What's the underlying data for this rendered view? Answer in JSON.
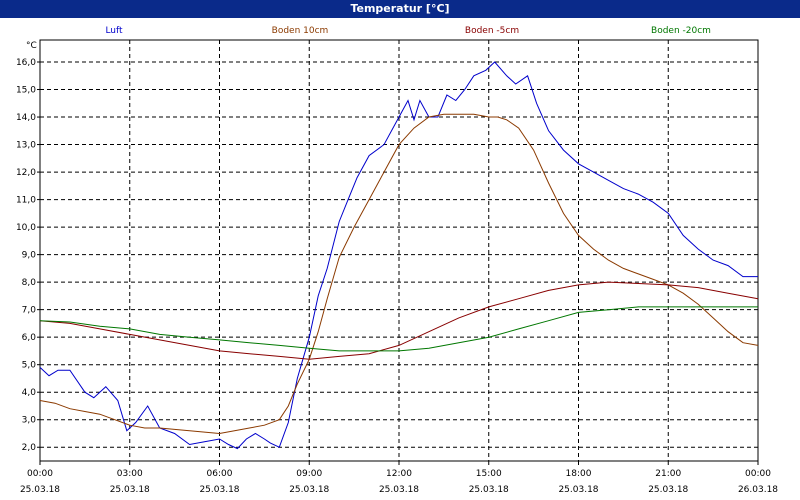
{
  "window": {
    "title": "Temperatur [°C]"
  },
  "chart_data": {
    "type": "line",
    "title": "Temperatur [°C]",
    "ylabel": "°C",
    "xlabel": "",
    "ylim": [
      1.5,
      16.8
    ],
    "xlim": [
      0,
      24
    ],
    "grid": true,
    "legend_position": "top",
    "y_ticks": [
      "2,0",
      "3,0",
      "4,0",
      "5,0",
      "6,0",
      "7,0",
      "8,0",
      "9,0",
      "10,0",
      "11,0",
      "12,0",
      "13,0",
      "14,0",
      "15,0",
      "16,0"
    ],
    "x_ticks": [
      {
        "x": 0,
        "time": "00:00",
        "date": "25.03.18"
      },
      {
        "x": 3,
        "time": "03:00",
        "date": "25.03.18"
      },
      {
        "x": 6,
        "time": "06:00",
        "date": "25.03.18"
      },
      {
        "x": 9,
        "time": "09:00",
        "date": "25.03.18"
      },
      {
        "x": 12,
        "time": "12:00",
        "date": "25.03.18"
      },
      {
        "x": 15,
        "time": "15:00",
        "date": "25.03.18"
      },
      {
        "x": 18,
        "time": "18:00",
        "date": "25.03.18"
      },
      {
        "x": 21,
        "time": "21:00",
        "date": "25.03.18"
      },
      {
        "x": 24,
        "time": "00:00",
        "date": "26.03.18"
      }
    ],
    "series": [
      {
        "name": "Luft",
        "color": "#0000cc",
        "x": [
          0,
          0.3,
          0.6,
          1.0,
          1.5,
          1.8,
          2.2,
          2.6,
          2.9,
          3.2,
          3.6,
          4.0,
          4.5,
          5.0,
          5.5,
          6.0,
          6.3,
          6.6,
          6.9,
          7.2,
          7.5,
          7.7,
          8.0,
          8.3,
          8.6,
          9.0,
          9.3,
          9.6,
          10.0,
          10.3,
          10.6,
          11.0,
          11.5,
          12.0,
          12.3,
          12.5,
          12.7,
          13.0,
          13.3,
          13.6,
          13.9,
          14.2,
          14.5,
          14.9,
          15.2,
          15.6,
          15.9,
          16.3,
          16.6,
          17.0,
          17.5,
          18.0,
          18.5,
          19.0,
          19.5,
          20.0,
          20.5,
          21.0,
          21.5,
          22.0,
          22.5,
          23.0,
          23.5,
          24.0
        ],
        "values": [
          4.9,
          4.6,
          4.8,
          4.8,
          4.0,
          3.8,
          4.2,
          3.7,
          2.6,
          2.9,
          3.5,
          2.7,
          2.5,
          2.1,
          2.2,
          2.3,
          2.1,
          1.95,
          2.3,
          2.5,
          2.3,
          2.15,
          2.0,
          2.9,
          4.5,
          6.0,
          7.5,
          8.5,
          10.2,
          11.0,
          11.8,
          12.6,
          13.0,
          14.0,
          14.6,
          13.9,
          14.6,
          14.0,
          14.0,
          14.8,
          14.6,
          15.0,
          15.5,
          15.7,
          16.0,
          15.5,
          15.2,
          15.5,
          14.5,
          13.5,
          12.8,
          12.3,
          12.0,
          11.7,
          11.4,
          11.2,
          10.9,
          10.5,
          9.7,
          9.2,
          8.8,
          8.6,
          8.2,
          8.2
        ]
      },
      {
        "name": "Boden 10cm",
        "color": "#8b3a00",
        "x": [
          0,
          0.5,
          1.0,
          1.5,
          2.0,
          2.5,
          3.0,
          3.5,
          4.0,
          4.5,
          5.0,
          5.5,
          6.0,
          6.5,
          7.0,
          7.5,
          8.0,
          8.3,
          8.6,
          9.0,
          9.3,
          9.6,
          10.0,
          10.5,
          11.0,
          11.5,
          12.0,
          12.5,
          13.0,
          13.5,
          14.0,
          14.5,
          15.0,
          15.3,
          15.6,
          16.0,
          16.5,
          17.0,
          17.5,
          18.0,
          18.5,
          19.0,
          19.5,
          20.0,
          20.5,
          21.0,
          21.5,
          22.0,
          22.5,
          23.0,
          23.5,
          24.0
        ],
        "values": [
          3.7,
          3.6,
          3.4,
          3.3,
          3.2,
          3.0,
          2.8,
          2.7,
          2.7,
          2.65,
          2.6,
          2.55,
          2.5,
          2.6,
          2.7,
          2.8,
          3.0,
          3.5,
          4.3,
          5.2,
          6.2,
          7.4,
          8.9,
          10.0,
          11.0,
          12.0,
          13.0,
          13.6,
          14.0,
          14.1,
          14.1,
          14.1,
          14.0,
          14.0,
          13.9,
          13.6,
          12.8,
          11.6,
          10.5,
          9.7,
          9.2,
          8.8,
          8.5,
          8.3,
          8.1,
          7.9,
          7.6,
          7.2,
          6.7,
          6.2,
          5.8,
          5.7
        ]
      },
      {
        "name": "Boden -5cm",
        "color": "#880000",
        "x": [
          0,
          1,
          2,
          3,
          4,
          5,
          6,
          7,
          8,
          9,
          10,
          11,
          12,
          13,
          14,
          15,
          16,
          17,
          18,
          19,
          20,
          21,
          22,
          23,
          24
        ],
        "values": [
          6.6,
          6.5,
          6.3,
          6.1,
          5.9,
          5.7,
          5.5,
          5.4,
          5.3,
          5.2,
          5.3,
          5.4,
          5.7,
          6.2,
          6.7,
          7.1,
          7.4,
          7.7,
          7.9,
          8.0,
          7.95,
          7.9,
          7.8,
          7.6,
          7.4
        ]
      },
      {
        "name": "Boden -20cm",
        "color": "#007700",
        "x": [
          0,
          1,
          2,
          3,
          4,
          5,
          6,
          7,
          8,
          9,
          10,
          11,
          12,
          13,
          14,
          15,
          16,
          17,
          18,
          19,
          20,
          21,
          22,
          23,
          24
        ],
        "values": [
          6.6,
          6.55,
          6.4,
          6.3,
          6.1,
          6.0,
          5.9,
          5.8,
          5.7,
          5.6,
          5.5,
          5.5,
          5.5,
          5.6,
          5.8,
          6.0,
          6.3,
          6.6,
          6.9,
          7.0,
          7.1,
          7.1,
          7.1,
          7.1,
          7.1
        ]
      }
    ]
  }
}
